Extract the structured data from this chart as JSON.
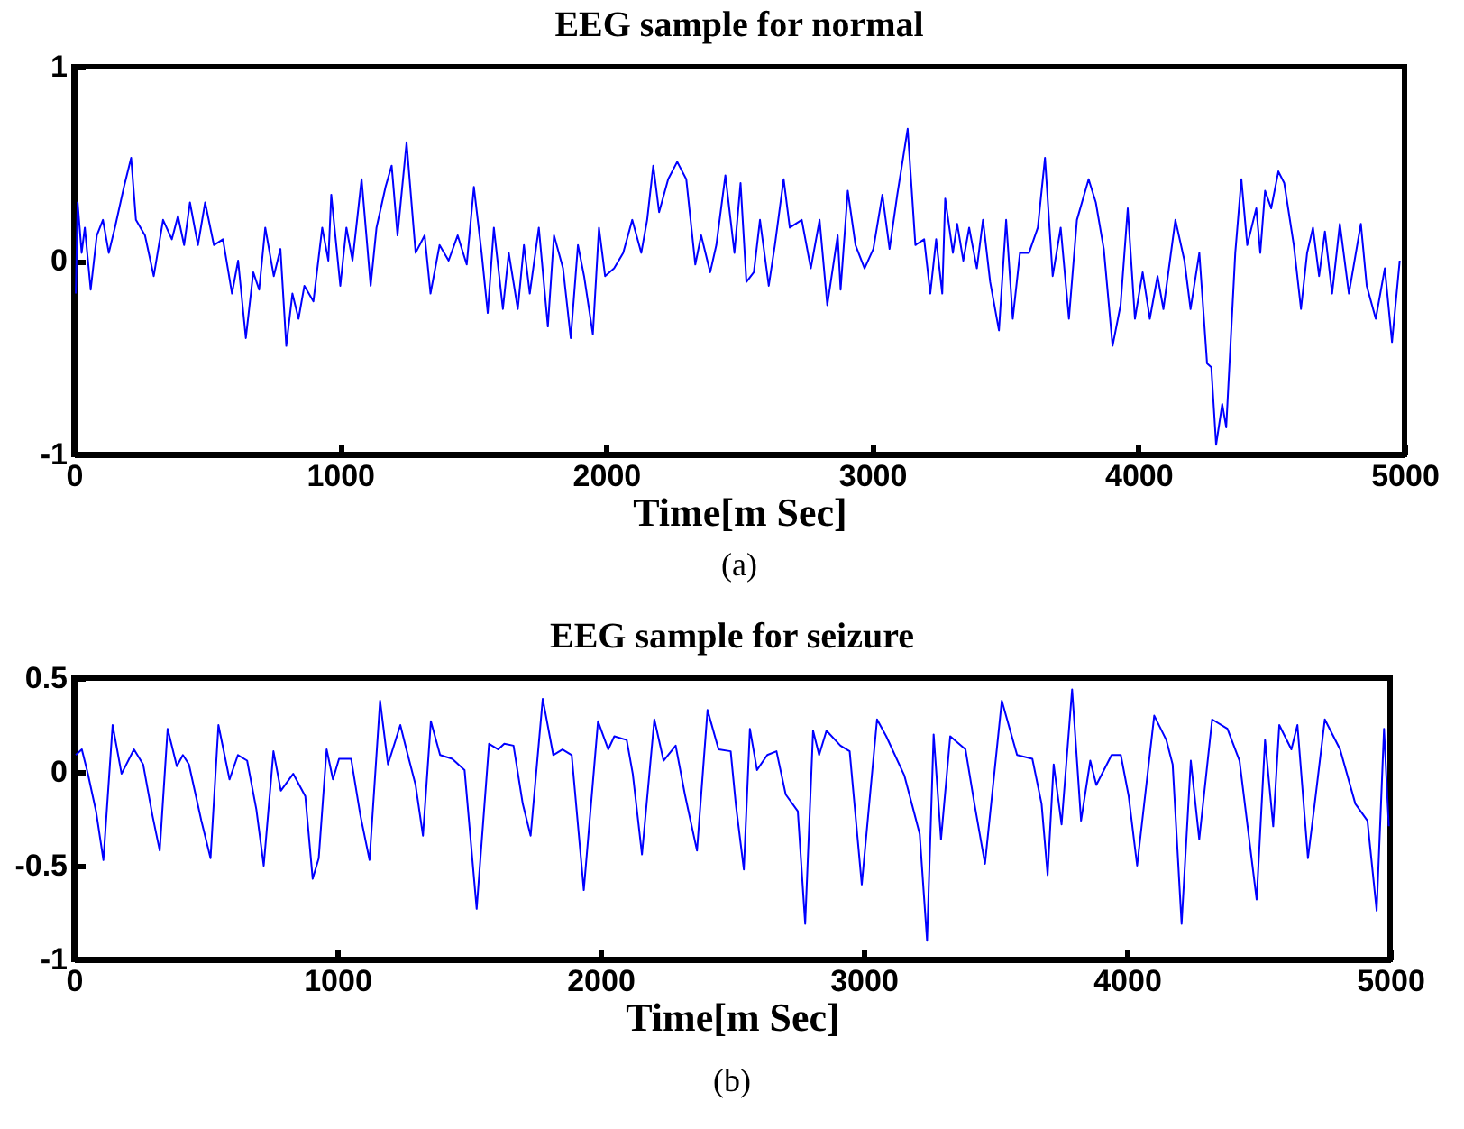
{
  "chart_data": [
    {
      "type": "line",
      "title": "EEG sample for normal",
      "xlabel": "Time[m Sec]",
      "xlim": [
        0,
        5000
      ],
      "xticks": [
        0,
        1000,
        2000,
        3000,
        4000,
        5000
      ],
      "ylim": [
        -1,
        1
      ],
      "yticks": [
        -1,
        0,
        1
      ],
      "color": "#0000ff",
      "annotations": [
        "(a)"
      ],
      "x": [
        7,
        14,
        29,
        41,
        63,
        86,
        109,
        131,
        154,
        188,
        215,
        233,
        267,
        300,
        335,
        368,
        391,
        414,
        436,
        466,
        493,
        526,
        560,
        594,
        617,
        646,
        674,
        696,
        719,
        751,
        776,
        798,
        821,
        844,
        866,
        900,
        933,
        956,
        967,
        1001,
        1024,
        1047,
        1081,
        1115,
        1137,
        1171,
        1194,
        1216,
        1250,
        1284,
        1318,
        1340,
        1374,
        1408,
        1442,
        1476,
        1503,
        1532,
        1555,
        1578,
        1612,
        1634,
        1668,
        1691,
        1713,
        1747,
        1781,
        1804,
        1838,
        1867,
        1894,
        1917,
        1950,
        1973,
        1996,
        2030,
        2064,
        2098,
        2132,
        2154,
        2177,
        2199,
        2233,
        2267,
        2301,
        2335,
        2357,
        2391,
        2414,
        2448,
        2482,
        2505,
        2527,
        2555,
        2578,
        2611,
        2634,
        2667,
        2690,
        2735,
        2769,
        2802,
        2831,
        2870,
        2881,
        2908,
        2937,
        2971,
        3004,
        3038,
        3065,
        3094,
        3133,
        3162,
        3195,
        3218,
        3240,
        3263,
        3274,
        3303,
        3319,
        3342,
        3364,
        3393,
        3416,
        3443,
        3476,
        3503,
        3528,
        3555,
        3589,
        3622,
        3649,
        3678,
        3708,
        3739,
        3769,
        3813,
        3840,
        3870,
        3903,
        3933,
        3960,
        3987,
        4016,
        4043,
        4072,
        4094,
        4139,
        4173,
        4196,
        4229,
        4258,
        4274,
        4292,
        4315,
        4330,
        4364,
        4387,
        4409,
        4443,
        4458,
        4476,
        4499,
        4526,
        4548,
        4584,
        4611,
        4634,
        4656,
        4679,
        4701,
        4728,
        4757,
        4791,
        4836,
        4858,
        4892,
        4926,
        4953,
        4982
      ],
      "values": [
        -0.17,
        0.3,
        0.04,
        0.17,
        -0.15,
        0.13,
        0.21,
        0.04,
        0.17,
        0.38,
        0.53,
        0.21,
        0.13,
        -0.08,
        0.21,
        0.11,
        0.23,
        0.08,
        0.3,
        0.08,
        0.3,
        0.08,
        0.11,
        -0.17,
        0,
        -0.4,
        -0.06,
        -0.15,
        0.17,
        -0.08,
        0.06,
        -0.44,
        -0.17,
        -0.3,
        -0.13,
        -0.21,
        0.17,
        0,
        0.34,
        -0.13,
        0.17,
        0,
        0.42,
        -0.13,
        0.17,
        0.38,
        0.49,
        0.13,
        0.61,
        0.04,
        0.13,
        -0.17,
        0.08,
        0,
        0.13,
        -0.02,
        0.38,
        0.04,
        -0.27,
        0.17,
        -0.25,
        0.04,
        -0.25,
        0.08,
        -0.17,
        0.17,
        -0.34,
        0.13,
        -0.04,
        -0.4,
        0.08,
        -0.08,
        -0.38,
        0.17,
        -0.08,
        -0.04,
        0.04,
        0.21,
        0.04,
        0.21,
        0.49,
        0.25,
        0.42,
        0.51,
        0.42,
        -0.02,
        0.13,
        -0.06,
        0.08,
        0.44,
        0.04,
        0.4,
        -0.11,
        -0.06,
        0.21,
        -0.13,
        0.08,
        0.42,
        0.17,
        0.21,
        -0.04,
        0.21,
        -0.23,
        0.13,
        -0.15,
        0.36,
        0.08,
        -0.04,
        0.06,
        0.34,
        0.06,
        0.34,
        0.68,
        0.08,
        0.11,
        -0.17,
        0.11,
        -0.17,
        0.32,
        0.04,
        0.19,
        0,
        0.17,
        -0.04,
        0.21,
        -0.11,
        -0.36,
        0.21,
        -0.3,
        0.04,
        0.04,
        0.17,
        0.53,
        -0.08,
        0.17,
        -0.3,
        0.21,
        0.42,
        0.3,
        0.06,
        -0.44,
        -0.23,
        0.27,
        -0.3,
        -0.06,
        -0.3,
        -0.08,
        -0.25,
        0.21,
        0,
        -0.25,
        0.04,
        -0.53,
        -0.55,
        -0.95,
        -0.74,
        -0.86,
        0.04,
        0.42,
        0.08,
        0.27,
        0.04,
        0.36,
        0.27,
        0.46,
        0.4,
        0.08,
        -0.25,
        0.04,
        0.17,
        -0.08,
        0.15,
        -0.17,
        0.19,
        -0.17,
        0.19,
        -0.13,
        -0.3,
        -0.04,
        -0.42,
        0
      ]
    },
    {
      "type": "line",
      "title": "EEG sample for seizure",
      "xlabel": "Time[m Sec]",
      "xlim": [
        0,
        5000
      ],
      "xticks": [
        0,
        1000,
        2000,
        3000,
        4000,
        5000
      ],
      "ylim": [
        -1,
        0.5
      ],
      "yticks": [
        -1,
        -0.5,
        0,
        0.5
      ],
      "color": "#0000ff",
      "annotations": [
        "(b)"
      ],
      "x": [
        7,
        30,
        53,
        84,
        112,
        147,
        181,
        228,
        263,
        298,
        326,
        356,
        391,
        414,
        437,
        484,
        519,
        549,
        591,
        623,
        658,
        693,
        721,
        758,
        786,
        833,
        879,
        907,
        930,
        960,
        984,
        1007,
        1053,
        1088,
        1123,
        1163,
        1193,
        1240,
        1263,
        1298,
        1326,
        1356,
        1391,
        1437,
        1484,
        1530,
        1577,
        1612,
        1635,
        1670,
        1705,
        1735,
        1781,
        1821,
        1856,
        1891,
        1937,
        1991,
        2030,
        2053,
        2100,
        2123,
        2158,
        2205,
        2240,
        2286,
        2321,
        2367,
        2407,
        2449,
        2495,
        2515,
        2545,
        2568,
        2595,
        2634,
        2669,
        2704,
        2750,
        2778,
        2808,
        2831,
        2859,
        2912,
        2947,
        2993,
        3051,
        3086,
        3155,
        3213,
        3241,
        3266,
        3294,
        3329,
        3387,
        3421,
        3461,
        3525,
        3583,
        3641,
        3676,
        3699,
        3722,
        3752,
        3792,
        3826,
        3861,
        3884,
        3942,
        3977,
        4007,
        4039,
        4104,
        4150,
        4174,
        4208,
        4243,
        4275,
        4324,
        4382,
        4428,
        4493,
        4525,
        4556,
        4579,
        4625,
        4648,
        4688,
        4711,
        4752,
        4810,
        4868,
        4914,
        4949,
        4977,
        4995
      ],
      "values": [
        0.09,
        0.12,
        -0.01,
        -0.21,
        -0.47,
        0.25,
        -0.01,
        0.12,
        0.04,
        -0.23,
        -0.42,
        0.23,
        0.03,
        0.09,
        0.04,
        -0.26,
        -0.46,
        0.25,
        -0.04,
        0.09,
        0.06,
        -0.2,
        -0.5,
        0.11,
        -0.1,
        -0.01,
        -0.13,
        -0.57,
        -0.46,
        0.12,
        -0.04,
        0.07,
        0.07,
        -0.23,
        -0.47,
        0.38,
        0.04,
        0.25,
        0.12,
        -0.07,
        -0.34,
        0.27,
        0.09,
        0.07,
        0.01,
        -0.73,
        0.15,
        0.12,
        0.15,
        0.14,
        -0.17,
        -0.34,
        0.39,
        0.09,
        0.12,
        0.09,
        -0.63,
        0.27,
        0.12,
        0.19,
        0.17,
        -0.01,
        -0.44,
        0.28,
        0.06,
        0.14,
        -0.12,
        -0.42,
        0.33,
        0.12,
        0.11,
        -0.18,
        -0.52,
        0.23,
        0.01,
        0.09,
        0.11,
        -0.12,
        -0.21,
        -0.81,
        0.22,
        0.09,
        0.22,
        0.14,
        0.11,
        -0.6,
        0.28,
        0.19,
        -0.02,
        -0.33,
        -0.9,
        0.2,
        -0.36,
        0.19,
        0.12,
        -0.17,
        -0.49,
        0.38,
        0.09,
        0.07,
        -0.17,
        -0.55,
        0.04,
        -0.28,
        0.44,
        -0.26,
        0.06,
        -0.07,
        0.09,
        0.09,
        -0.13,
        -0.5,
        0.3,
        0.17,
        0.04,
        -0.81,
        0.06,
        -0.36,
        0.28,
        0.23,
        0.06,
        -0.68,
        0.17,
        -0.29,
        0.25,
        0.12,
        0.25,
        -0.46,
        -0.2,
        0.28,
        0.12,
        -0.17,
        -0.26,
        -0.74,
        0.23,
        -0.29
      ]
    }
  ]
}
